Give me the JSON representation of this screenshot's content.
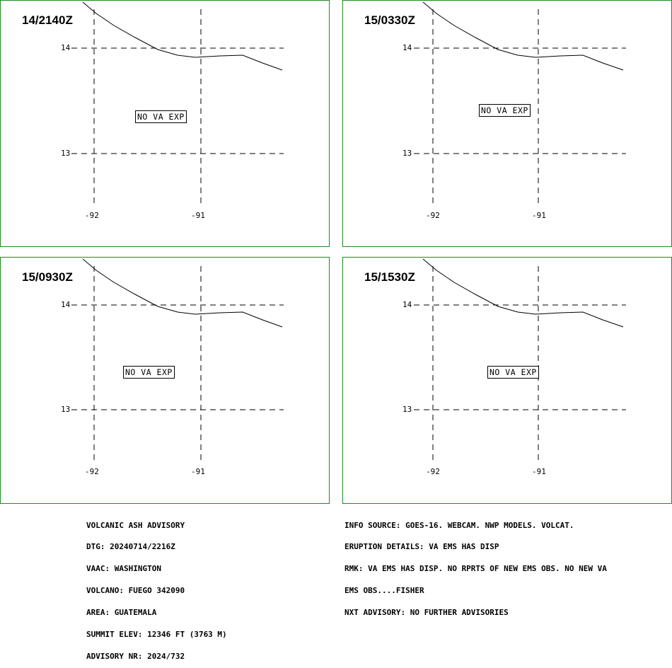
{
  "colors": {
    "panel_border": "#1f8a1f",
    "lines": "#000000"
  },
  "panels": [
    {
      "title": "14/2140Z",
      "status": "NO VA EXP",
      "lat_labels": [
        "14",
        "13"
      ],
      "lon_labels": [
        "-92",
        "-91"
      ]
    },
    {
      "title": "15/0330Z",
      "status": "NO VA EXP",
      "lat_labels": [
        "14",
        "13"
      ],
      "lon_labels": [
        "-92",
        "-91"
      ]
    },
    {
      "title": "15/0930Z",
      "status": "NO VA EXP",
      "lat_labels": [
        "14",
        "13"
      ],
      "lon_labels": [
        "-92",
        "-91"
      ]
    },
    {
      "title": "15/1530Z",
      "status": "NO VA EXP",
      "lat_labels": [
        "14",
        "13"
      ],
      "lon_labels": [
        "-92",
        "-91"
      ]
    }
  ],
  "advisory_left": [
    "VOLCANIC ASH ADVISORY",
    "DTG: 20240714/2216Z",
    "VAAC: WASHINGTON",
    "VOLCANO: FUEGO 342090",
    "AREA: GUATEMALA",
    "SUMMIT ELEV: 12346 FT (3763 M)",
    "ADVISORY NR: 2024/732"
  ],
  "advisory_right": [
    "INFO SOURCE: GOES-16. WEBCAM. NWP MODELS. VOLCAT.",
    "ERUPTION DETAILS: VA EMS HAS DISP",
    "RMK: VA EMS HAS DISP. NO RPRTS OF NEW EMS OBS. NO NEW VA",
    "EMS OBS....FISHER",
    "NXT ADVISORY: NO FURTHER ADVISORIES"
  ]
}
